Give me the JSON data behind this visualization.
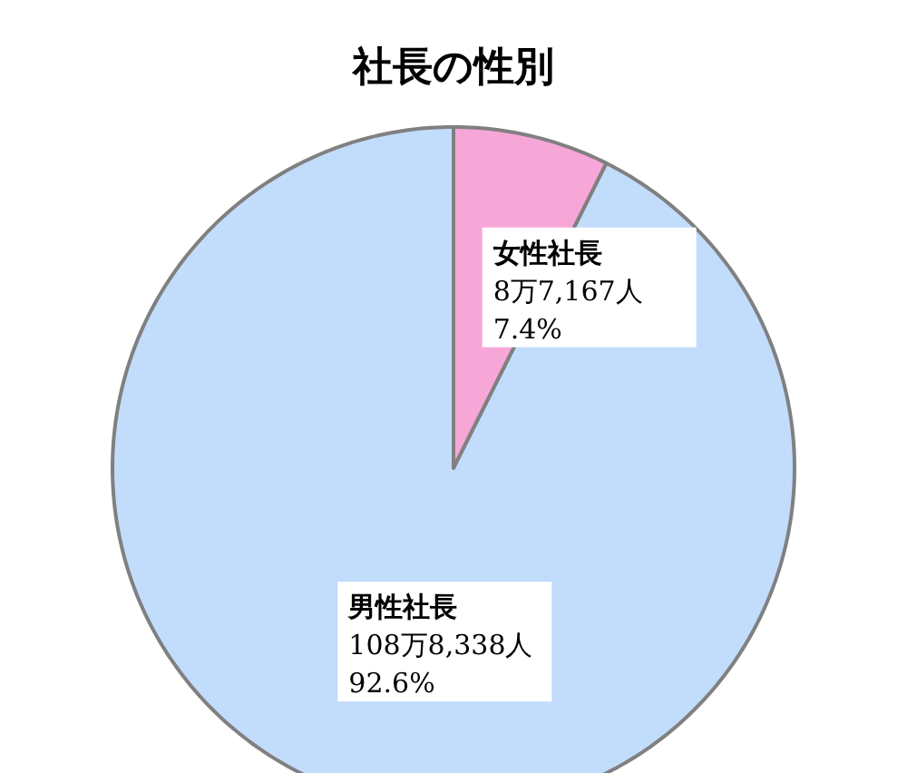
{
  "chart_data": {
    "type": "pie",
    "title": "社長の性別",
    "categories": [
      "女性社長",
      "男性社長"
    ],
    "values": [
      7.4,
      92.6
    ],
    "value_labels": [
      "8万7,167人\n7.4%",
      "108万8,338人\n92.6%"
    ],
    "colors": [
      "#f7a6d8",
      "#c2dcfc"
    ]
  }
}
